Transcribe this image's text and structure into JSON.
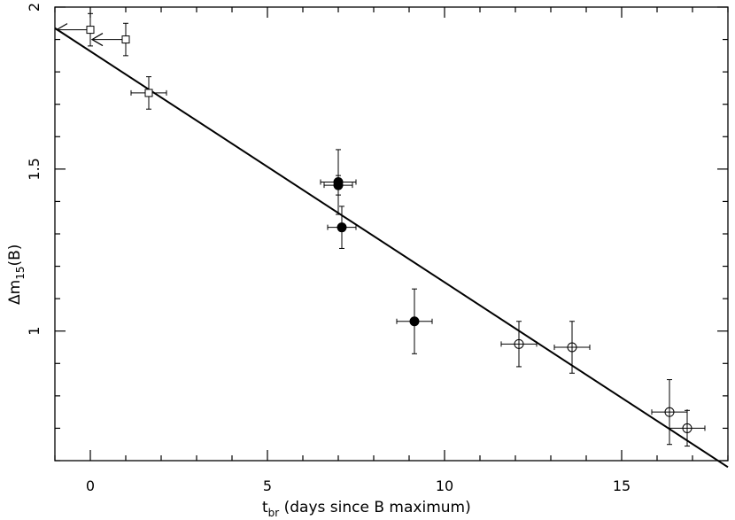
{
  "chart_data": {
    "type": "scatter",
    "xlabel": {
      "main": "t",
      "sub": "br",
      "rest": " (days since B maximum)"
    },
    "ylabel": {
      "main": "Δm",
      "sub": "15",
      "rest": "(B)"
    },
    "xlim": [
      -1,
      18
    ],
    "ylim": [
      0.6,
      2.0
    ],
    "xticks_major": [
      0,
      5,
      10,
      15
    ],
    "xtick_labels": [
      "0",
      "5",
      "10",
      "15"
    ],
    "yticks_major": [
      1.0,
      1.5,
      2.0
    ],
    "ytick_labels": [
      "1",
      "1.5",
      "2"
    ],
    "fit_line": {
      "x": [
        -1,
        18
      ],
      "y": [
        1.935,
        0.58
      ]
    },
    "series": [
      {
        "marker": "open-square",
        "points": [
          {
            "x": 0.0,
            "y": 1.93,
            "xerr": 0,
            "yerr": 0.05,
            "upper_limit_arrow": "left"
          },
          {
            "x": 1.0,
            "y": 1.9,
            "xerr": 0,
            "yerr": 0.05,
            "upper_limit_arrow": "left"
          },
          {
            "x": 1.65,
            "y": 1.735,
            "xerr": 0.5,
            "yerr": 0.05
          }
        ]
      },
      {
        "marker": "filled-circle",
        "points": [
          {
            "x": 7.0,
            "y": 1.46,
            "xerr": 0.5,
            "yerr": 0.1
          },
          {
            "x": 7.0,
            "y": 1.45,
            "xerr": 0.4,
            "yerr": 0.03
          },
          {
            "x": 7.1,
            "y": 1.32,
            "xerr": 0.4,
            "yerr": 0.065
          },
          {
            "x": 9.15,
            "y": 1.03,
            "xerr": 0.5,
            "yerr": 0.1
          }
        ]
      },
      {
        "marker": "open-circle",
        "points": [
          {
            "x": 12.1,
            "y": 0.96,
            "xerr": 0.5,
            "yerr": 0.07
          },
          {
            "x": 13.6,
            "y": 0.95,
            "xerr": 0.5,
            "yerr": 0.08
          },
          {
            "x": 16.35,
            "y": 0.75,
            "xerr": 0.5,
            "yerr": 0.1
          },
          {
            "x": 16.85,
            "y": 0.7,
            "xerr": 0.5,
            "yerr": 0.055
          }
        ]
      }
    ]
  }
}
